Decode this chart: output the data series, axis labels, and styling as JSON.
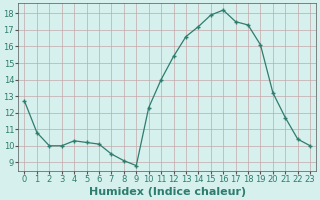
{
  "x": [
    0,
    1,
    2,
    3,
    4,
    5,
    6,
    7,
    8,
    9,
    10,
    11,
    12,
    13,
    14,
    15,
    16,
    17,
    18,
    19,
    20,
    21,
    22,
    23
  ],
  "y": [
    12.7,
    10.8,
    10.0,
    10.0,
    10.3,
    10.2,
    10.1,
    9.5,
    9.1,
    8.8,
    12.3,
    14.0,
    15.4,
    16.6,
    17.2,
    17.9,
    18.2,
    17.5,
    17.3,
    16.1,
    13.2,
    11.7,
    10.4,
    10.0
  ],
  "xlabel": "Humidex (Indice chaleur)",
  "ylim": [
    8.5,
    18.6
  ],
  "xlim": [
    -0.5,
    23.5
  ],
  "yticks": [
    9,
    10,
    11,
    12,
    13,
    14,
    15,
    16,
    17,
    18
  ],
  "xticks": [
    0,
    1,
    2,
    3,
    4,
    5,
    6,
    7,
    8,
    9,
    10,
    11,
    12,
    13,
    14,
    15,
    16,
    17,
    18,
    19,
    20,
    21,
    22,
    23
  ],
  "line_color": "#2e7d6e",
  "marker_color": "#2e7d6e",
  "bg_color": "#d6f0ee",
  "grid_color": "#c4a8a8",
  "tick_fontsize": 6,
  "xlabel_fontsize": 8
}
